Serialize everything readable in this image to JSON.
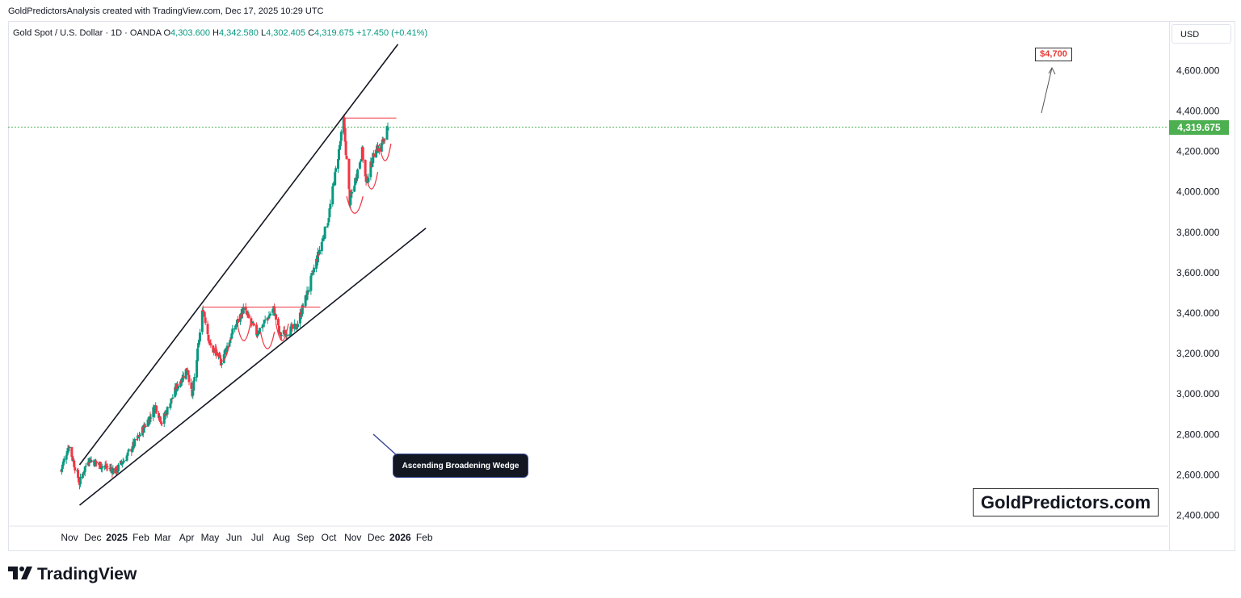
{
  "header": {
    "credit": "GoldPredictorsAnalysis created with TradingView.com, Dec 17, 2025 10:29 UTC",
    "symbol_line": "Gold Spot / U.S. Dollar · 1D · OANDA",
    "o_label": "O",
    "open": "4,303.600",
    "h_label": "H",
    "high": "4,342.580",
    "l_label": "L",
    "low": "4,302.405",
    "c_label": "C",
    "close": "4,319.675",
    "change": "+17.450 (+0.41%)"
  },
  "axis": {
    "currency": "USD",
    "current_price": "4,319.675"
  },
  "annotations": {
    "wedge_label": "Ascending Broadening Wedge",
    "target_label": "$4,700",
    "watermark": "GoldPredictors.com"
  },
  "brand": {
    "name": "TradingView"
  },
  "colors": {
    "up": "#089981",
    "down": "#f23645",
    "trend": "#131722",
    "resistance": "#f23645",
    "price_tag": "#4caf50"
  },
  "chart_data": {
    "type": "candlestick",
    "title": "Gold Spot / U.S. Dollar · 1D · OANDA",
    "ylim": [
      2400,
      4700
    ],
    "y_ticks": [
      "4,600.000",
      "4,400.000",
      "4,200.000",
      "4,000.000",
      "3,800.000",
      "3,600.000",
      "3,400.000",
      "3,200.000",
      "3,000.000",
      "2,800.000",
      "2,600.000",
      "2,400.000"
    ],
    "x_ticks": [
      "Nov",
      "Dec",
      "2025",
      "Feb",
      "Mar",
      "Apr",
      "May",
      "Jun",
      "Jul",
      "Aug",
      "Sep",
      "Oct",
      "Nov",
      "Dec",
      "2026",
      "Feb"
    ],
    "path": [
      [
        "Oct 21 2024",
        2620
      ],
      [
        "Oct 31 2024",
        2750
      ],
      [
        "Nov 14 2024",
        2560
      ],
      [
        "Nov 25 2024",
        2680
      ],
      [
        "Dec 10 2024",
        2650
      ],
      [
        "Dec 31 2024",
        2620
      ],
      [
        "Jan 15 2025",
        2700
      ],
      [
        "Jan 31 2025",
        2800
      ],
      [
        "Feb 20 2025",
        2940
      ],
      [
        "Feb 28 2025",
        2860
      ],
      [
        "Mar 20 2025",
        3040
      ],
      [
        "Apr 2 2025",
        3130
      ],
      [
        "Apr 8 2025",
        2980
      ],
      [
        "Apr 22 2025",
        3430
      ],
      [
        "May 1 2025",
        3240
      ],
      [
        "May 15 2025",
        3160
      ],
      [
        "Jun 2 2025",
        3330
      ],
      [
        "Jun 13 2025",
        3420
      ],
      [
        "Jun 30 2025",
        3300
      ],
      [
        "Jul 22 2025",
        3420
      ],
      [
        "Jul 30 2025",
        3290
      ],
      [
        "Aug 20 2025",
        3330
      ],
      [
        "Sep 1 2025",
        3470
      ],
      [
        "Sep 30 2025",
        3860
      ],
      [
        "Oct 20 2025",
        4350
      ],
      [
        "Oct 28 2025",
        3950
      ],
      [
        "Nov 13 2025",
        4200
      ],
      [
        "Nov 18 2025",
        4040
      ],
      [
        "Dec 1 2025",
        4230
      ],
      [
        "Dec 5 2025",
        4200
      ],
      [
        "Dec 16 2025",
        4320
      ]
    ],
    "last": {
      "open": 4303.6,
      "high": 4342.58,
      "low": 4302.405,
      "close": 4319.675
    },
    "trendlines": [
      {
        "name": "upper",
        "from": [
          "Nov 14 2024",
          2650
        ],
        "to": [
          "Dec 29 2025",
          4730
        ]
      },
      {
        "name": "lower",
        "from": [
          "Nov 14 2024",
          2450
        ],
        "to": [
          "Feb 3 2026",
          3820
        ]
      }
    ],
    "resistance": [
      {
        "from": "Apr 22 2025",
        "to": "Sep 20 2025",
        "value": 3430
      },
      {
        "from": "Oct 20 2025",
        "to": "Dec 27 2025",
        "value": 4365
      }
    ],
    "cups": [
      [
        "May 8 2025",
        "May 26 2025",
        3160
      ],
      [
        "Jun 5 2025",
        "Jun 22 2025",
        3260
      ],
      [
        "Jul 5 2025",
        "Jul 23 2025",
        3220
      ],
      [
        "Jul 25 2025",
        "Aug 10 2025",
        3260
      ],
      [
        "Oct 24 2025",
        "Nov 14 2025",
        3890
      ],
      [
        "Nov 17 2025",
        "Dec 3 2025",
        4010
      ],
      [
        "Dec 5 2025",
        "Dec 20 2025",
        4150
      ]
    ],
    "grid": false
  }
}
